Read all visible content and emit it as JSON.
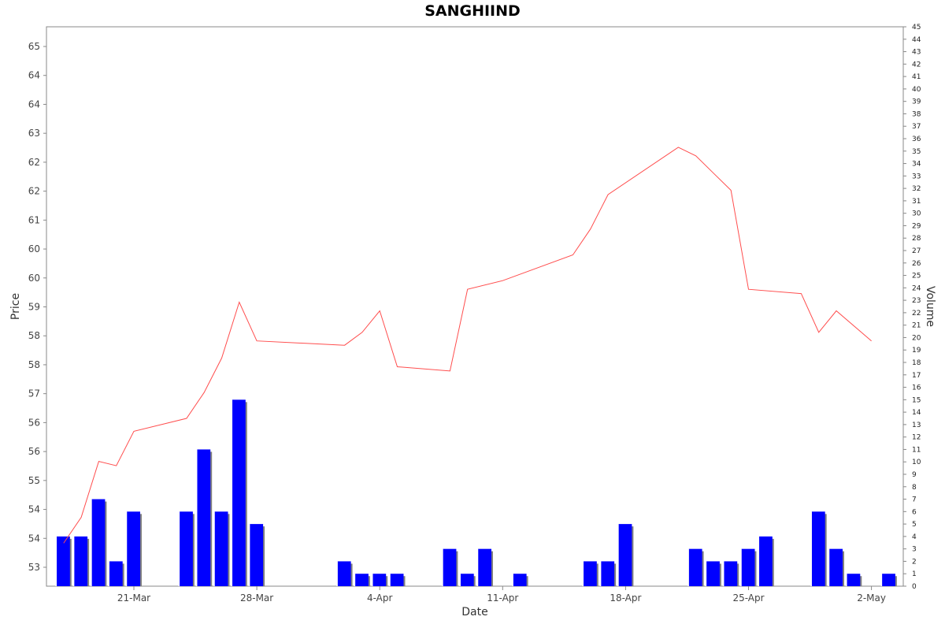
{
  "chart_data": {
    "type": "line+bar",
    "title": "SANGHIIND",
    "xlabel": "Date",
    "ylabel": "Price",
    "y2label": "Volume",
    "x_tick_labels": [
      "21-Mar",
      "28-Mar",
      "4-Apr",
      "11-Apr",
      "18-Apr",
      "25-Apr",
      "2-May"
    ],
    "price_tick_labels": [
      "53",
      "54",
      "54",
      "55",
      "56",
      "56",
      "57",
      "58",
      "58",
      "59",
      "60",
      "60",
      "61",
      "62",
      "62",
      "63",
      "64",
      "64",
      "65"
    ],
    "volume_tick_labels": [
      "0",
      "1",
      "2",
      "3",
      "4",
      "5",
      "6",
      "7",
      "8",
      "9",
      "10",
      "11",
      "12",
      "13",
      "14",
      "15",
      "16",
      "17",
      "18",
      "19",
      "20",
      "21",
      "22",
      "23",
      "24",
      "25",
      "26",
      "27",
      "28",
      "29",
      "30",
      "31",
      "32",
      "33",
      "34",
      "35",
      "36",
      "37",
      "38",
      "39",
      "40",
      "41",
      "42",
      "43",
      "44",
      "45"
    ],
    "ylim": [
      52.7,
      65.7
    ],
    "y2lim": [
      0,
      45
    ],
    "grid": false,
    "colors": {
      "price_line": "#ff4d4d",
      "volume_bar": "#0000ff",
      "volume_shadow": "#808080",
      "frame": "#888888"
    },
    "series": [
      {
        "name": "Price",
        "kind": "line",
        "x": [
          "2024-03-17",
          "2024-03-18",
          "2024-03-19",
          "2024-03-20",
          "2024-03-21",
          "2024-03-24",
          "2024-03-25",
          "2024-03-26",
          "2024-03-27",
          "2024-03-28",
          "2024-04-02",
          "2024-04-03",
          "2024-04-04",
          "2024-04-05",
          "2024-04-08",
          "2024-04-09",
          "2024-04-11",
          "2024-04-15",
          "2024-04-16",
          "2024-04-17",
          "2024-04-21",
          "2024-04-22",
          "2024-04-23",
          "2024-04-24",
          "2024-04-25",
          "2024-04-28",
          "2024-04-29",
          "2024-04-30",
          "2024-05-02"
        ],
        "values": [
          53.7,
          54.3,
          55.6,
          55.5,
          56.3,
          56.6,
          57.2,
          58.0,
          59.3,
          58.4,
          58.3,
          58.6,
          59.1,
          57.8,
          57.7,
          59.6,
          59.8,
          60.4,
          61.0,
          61.8,
          62.9,
          62.7,
          62.3,
          61.9,
          59.6,
          59.5,
          58.6,
          59.1,
          58.4
        ]
      },
      {
        "name": "Volume",
        "kind": "bar",
        "axis": "right",
        "x": [
          "2024-03-17",
          "2024-03-18",
          "2024-03-19",
          "2024-03-20",
          "2024-03-21",
          "2024-03-24",
          "2024-03-25",
          "2024-03-26",
          "2024-03-27",
          "2024-03-28",
          "2024-04-02",
          "2024-04-03",
          "2024-04-04",
          "2024-04-05",
          "2024-04-08",
          "2024-04-09",
          "2024-04-10",
          "2024-04-12",
          "2024-04-16",
          "2024-04-17",
          "2024-04-18",
          "2024-04-22",
          "2024-04-23",
          "2024-04-24",
          "2024-04-25",
          "2024-04-26",
          "2024-04-29",
          "2024-04-30",
          "2024-05-01",
          "2024-05-03"
        ],
        "values": [
          4,
          4,
          7,
          2,
          6,
          6,
          11,
          6,
          15,
          5,
          2,
          1,
          1,
          1,
          3,
          1,
          3,
          1,
          2,
          2,
          5,
          3,
          2,
          2,
          3,
          4,
          6,
          3,
          1,
          1
        ]
      }
    ]
  }
}
